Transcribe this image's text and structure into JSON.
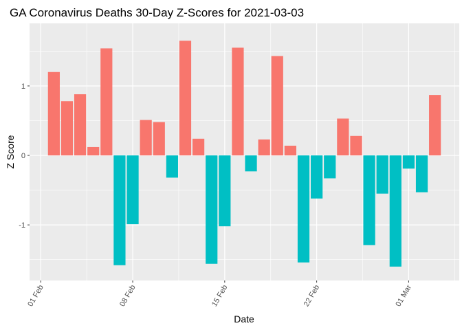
{
  "chart_data": {
    "type": "bar",
    "title": "GA Coronavirus Deaths 30-Day Z-Scores for 2021-03-03",
    "xlabel": "Date",
    "ylabel": "Z Score",
    "x_start_day": 1,
    "x_end_day": 32,
    "ylim": [
      -1.8,
      1.9
    ],
    "y_ticks": [
      {
        "value": 1,
        "label": "1"
      },
      {
        "value": 0,
        "label": "0"
      },
      {
        "value": -1,
        "label": "-1"
      }
    ],
    "x_ticks": [
      {
        "day": 1,
        "label": "01 Feb"
      },
      {
        "day": 8,
        "label": "08 Feb"
      },
      {
        "day": 15,
        "label": "15 Feb"
      },
      {
        "day": 22,
        "label": "22 Feb"
      },
      {
        "day": 29,
        "label": "01 Mar"
      }
    ],
    "grid": true,
    "legend": "none",
    "colors": {
      "positive": "#F8766D",
      "negative": "#00BFC4",
      "panel": "#EBEBEB",
      "grid": "#FFFFFF"
    },
    "bars": [
      {
        "day": 2,
        "value": 1.2
      },
      {
        "day": 3,
        "value": 0.78
      },
      {
        "day": 4,
        "value": 0.88
      },
      {
        "day": 5,
        "value": 0.12
      },
      {
        "day": 6,
        "value": 1.54
      },
      {
        "day": 7,
        "value": -1.58
      },
      {
        "day": 8,
        "value": -0.99
      },
      {
        "day": 9,
        "value": 0.51
      },
      {
        "day": 10,
        "value": 0.48
      },
      {
        "day": 11,
        "value": -0.32
      },
      {
        "day": 12,
        "value": 1.65
      },
      {
        "day": 13,
        "value": 0.24
      },
      {
        "day": 14,
        "value": -1.56
      },
      {
        "day": 15,
        "value": -1.02
      },
      {
        "day": 16,
        "value": 1.55
      },
      {
        "day": 17,
        "value": -0.23
      },
      {
        "day": 18,
        "value": 0.23
      },
      {
        "day": 19,
        "value": 1.43
      },
      {
        "day": 20,
        "value": 0.14
      },
      {
        "day": 21,
        "value": -1.54
      },
      {
        "day": 22,
        "value": -0.62
      },
      {
        "day": 23,
        "value": -0.33
      },
      {
        "day": 24,
        "value": 0.53
      },
      {
        "day": 25,
        "value": 0.28
      },
      {
        "day": 26,
        "value": -1.29
      },
      {
        "day": 27,
        "value": -0.55
      },
      {
        "day": 28,
        "value": -1.6
      },
      {
        "day": 29,
        "value": -0.19
      },
      {
        "day": 30,
        "value": -0.53
      },
      {
        "day": 31,
        "value": 0.87
      }
    ]
  }
}
